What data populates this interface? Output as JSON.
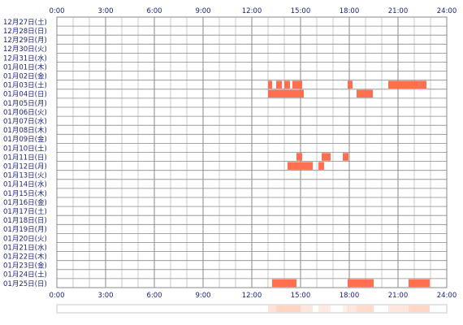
{
  "chart_data": {
    "type": "heatmap",
    "title": "",
    "x_axis": {
      "range": [
        0,
        24
      ],
      "unit": "hour",
      "tick_labels": [
        "0:00",
        "3:00",
        "6:00",
        "9:00",
        "12:00",
        "15:00",
        "18:00",
        "21:00",
        "24:00"
      ],
      "tick_values": [
        0,
        3,
        6,
        9,
        12,
        15,
        18,
        21,
        24
      ],
      "shown": "top-and-bottom"
    },
    "grid": true,
    "row_labels": [
      "12月27日(土)",
      "12月28日(日)",
      "12月29日(月)",
      "12月30日(火)",
      "12月31日(水)",
      "01月01日(木)",
      "01月02日(金)",
      "01月03日(土)",
      "01月04日(日)",
      "01月05日(月)",
      "01月06日(火)",
      "01月07日(水)",
      "01月08日(木)",
      "01月09日(金)",
      "01月10日(土)",
      "01月11日(日)",
      "01月12日(月)",
      "01月13日(火)",
      "01月14日(水)",
      "01月15日(木)",
      "01月16日(金)",
      "01月17日(土)",
      "01月18日(日)",
      "01月19日(月)",
      "01月20日(火)",
      "01月21日(水)",
      "01月22日(木)",
      "01月23日(金)",
      "01月24日(土)",
      "01月25日(日)"
    ],
    "active_intervals": [
      {
        "row": "01月03日(土)",
        "start": 13.0,
        "end": 13.25
      },
      {
        "row": "01月03日(土)",
        "start": 13.5,
        "end": 13.85
      },
      {
        "row": "01月03日(土)",
        "start": 14.0,
        "end": 14.35
      },
      {
        "row": "01月03日(土)",
        "start": 14.5,
        "end": 15.1
      },
      {
        "row": "01月03日(土)",
        "start": 17.9,
        "end": 18.2
      },
      {
        "row": "01月03日(土)",
        "start": 20.4,
        "end": 22.75
      },
      {
        "row": "01月04日(日)",
        "start": 13.0,
        "end": 15.2
      },
      {
        "row": "01月04日(日)",
        "start": 18.45,
        "end": 19.45
      },
      {
        "row": "01月11日(日)",
        "start": 14.75,
        "end": 15.1
      },
      {
        "row": "01月11日(日)",
        "start": 16.3,
        "end": 16.85
      },
      {
        "row": "01月11日(日)",
        "start": 17.6,
        "end": 17.95
      },
      {
        "row": "01月12日(月)",
        "start": 14.2,
        "end": 15.75
      },
      {
        "row": "01月12日(月)",
        "start": 16.1,
        "end": 16.45
      },
      {
        "row": "01月25日(日)",
        "start": 13.25,
        "end": 14.75
      },
      {
        "row": "01月25日(日)",
        "start": 17.9,
        "end": 19.5
      },
      {
        "row": "01月25日(日)",
        "start": 21.65,
        "end": 22.95
      }
    ],
    "summary_strip": {
      "shown": true,
      "position": "bottom",
      "intensity": [
        {
          "start": 13.0,
          "end": 13.5,
          "level": 0.35
        },
        {
          "start": 13.5,
          "end": 15.0,
          "level": 0.55
        },
        {
          "start": 15.0,
          "end": 15.75,
          "level": 0.3
        },
        {
          "start": 16.1,
          "end": 16.85,
          "level": 0.25
        },
        {
          "start": 17.6,
          "end": 17.95,
          "level": 0.2
        },
        {
          "start": 17.9,
          "end": 18.45,
          "level": 0.3
        },
        {
          "start": 18.45,
          "end": 19.5,
          "level": 0.45
        },
        {
          "start": 20.4,
          "end": 21.65,
          "level": 0.3
        },
        {
          "start": 21.65,
          "end": 22.95,
          "level": 0.5
        }
      ]
    },
    "colors": {
      "bar": "#ff6f50",
      "bar_alt": "#ff8a60",
      "grid": "#8a8a8a",
      "grid_minor": "#c8c8c8",
      "label": "#1a237e",
      "summary": "#ffb090"
    }
  }
}
